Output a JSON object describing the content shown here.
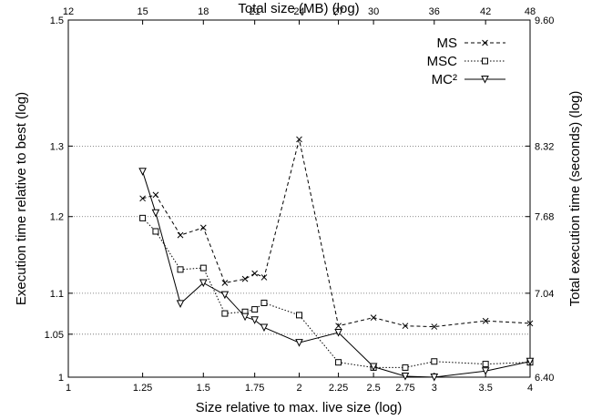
{
  "chart_data": {
    "type": "line",
    "xlabel": "Size relative to max. live size (log)",
    "x2label": "Total size (MB) (log)",
    "ylabel": "Execution time relative to best (log)",
    "y2label": "Total execution time (seconds) (log)",
    "xscale": "log",
    "yscale": "log",
    "xlim": [
      1,
      4
    ],
    "ylim": [
      1,
      1.5
    ],
    "y2lim": [
      6.4,
      9.6
    ],
    "x_ticks": [
      {
        "value": 1,
        "label": "1"
      },
      {
        "value": 1.25,
        "label": "1.25"
      },
      {
        "value": 1.5,
        "label": "1.5"
      },
      {
        "value": 1.75,
        "label": "1.75"
      },
      {
        "value": 2,
        "label": "2"
      },
      {
        "value": 2.25,
        "label": "2.25"
      },
      {
        "value": 2.5,
        "label": "2.5"
      },
      {
        "value": 2.75,
        "label": "2.75"
      },
      {
        "value": 3,
        "label": "3"
      },
      {
        "value": 3.5,
        "label": "3.5"
      },
      {
        "value": 4,
        "label": "4"
      }
    ],
    "x2_ticks": [
      {
        "value": 12,
        "label": "12"
      },
      {
        "value": 15,
        "label": "15"
      },
      {
        "value": 18,
        "label": "18"
      },
      {
        "value": 21,
        "label": "21"
      },
      {
        "value": 24,
        "label": "24"
      },
      {
        "value": 27,
        "label": "27"
      },
      {
        "value": 30,
        "label": "30"
      },
      {
        "value": 36,
        "label": "36"
      },
      {
        "value": 42,
        "label": "42"
      },
      {
        "value": 48,
        "label": "48"
      }
    ],
    "y_ticks": [
      {
        "value": 1,
        "label": "1"
      },
      {
        "value": 1.05,
        "label": "1.05"
      },
      {
        "value": 1.1,
        "label": "1.1"
      },
      {
        "value": 1.2,
        "label": "1.2"
      },
      {
        "value": 1.3,
        "label": "1.3"
      },
      {
        "value": 1.5,
        "label": "1.5"
      }
    ],
    "y2_ticks": [
      {
        "value": 6.4,
        "label": "6.40"
      },
      {
        "value": 7.04,
        "label": "7.04"
      },
      {
        "value": 7.68,
        "label": "7.68"
      },
      {
        "value": 8.32,
        "label": "8.32"
      },
      {
        "value": 9.6,
        "label": "9.60"
      }
    ],
    "gridlines_y": [
      1.05,
      1.1,
      1.2,
      1.3
    ],
    "grid_style": "dotted horizontal",
    "legend_position": "top-right",
    "series": [
      {
        "name": "MS",
        "line_style": "dashed",
        "marker": "x",
        "points": [
          [
            1.25,
            1.225
          ],
          [
            1.3,
            1.23
          ],
          [
            1.4,
            1.175
          ],
          [
            1.5,
            1.185
          ],
          [
            1.6,
            1.113
          ],
          [
            1.7,
            1.118
          ],
          [
            1.75,
            1.125
          ],
          [
            1.8,
            1.12
          ],
          [
            2,
            1.31
          ],
          [
            2.25,
            1.06
          ],
          [
            2.5,
            1.07
          ],
          [
            2.75,
            1.06
          ],
          [
            3,
            1.059
          ],
          [
            3.5,
            1.066
          ],
          [
            4,
            1.063
          ]
        ]
      },
      {
        "name": "MSC",
        "line_style": "dotted",
        "marker": "square",
        "points": [
          [
            1.25,
            1.198
          ],
          [
            1.3,
            1.18
          ],
          [
            1.4,
            1.13
          ],
          [
            1.5,
            1.132
          ],
          [
            1.6,
            1.075
          ],
          [
            1.7,
            1.077
          ],
          [
            1.75,
            1.08
          ],
          [
            1.8,
            1.088
          ],
          [
            2,
            1.073
          ],
          [
            2.25,
            1.017
          ],
          [
            2.5,
            1.011
          ],
          [
            2.75,
            1.011
          ],
          [
            3,
            1.018
          ],
          [
            3.5,
            1.015
          ],
          [
            4,
            1.017
          ]
        ]
      },
      {
        "name": "MC²",
        "line_style": "solid",
        "marker": "triangle-down",
        "points": [
          [
            1.25,
            1.263
          ],
          [
            1.3,
            1.205
          ],
          [
            1.4,
            1.087
          ],
          [
            1.5,
            1.113
          ],
          [
            1.6,
            1.098
          ],
          [
            1.7,
            1.071
          ],
          [
            1.75,
            1.067
          ],
          [
            1.8,
            1.058
          ],
          [
            2,
            1.04
          ],
          [
            2.25,
            1.052
          ],
          [
            2.5,
            1.012
          ],
          [
            2.75,
            1.001
          ],
          [
            3,
            1.0
          ],
          [
            3.5,
            1.007
          ],
          [
            4,
            1.018
          ]
        ]
      }
    ]
  }
}
